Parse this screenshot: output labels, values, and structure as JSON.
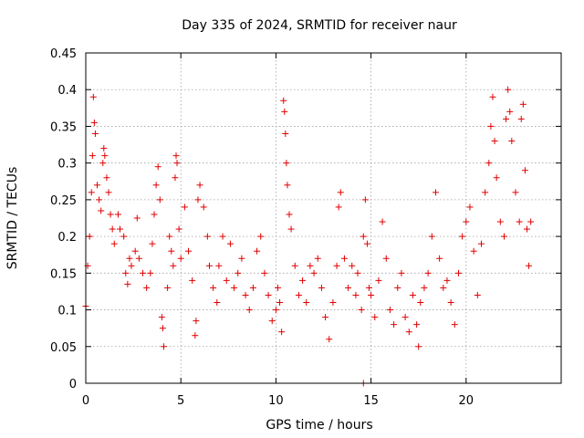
{
  "chart_data": {
    "type": "scatter",
    "title": "Day 335 of 2024, SRMTID for receiver naur",
    "xlabel": "GPS time / hours",
    "ylabel": "SRMTID / TECUs",
    "xlim": [
      0,
      25
    ],
    "ylim": [
      0,
      0.45
    ],
    "xticks": [
      0,
      5,
      10,
      15,
      20
    ],
    "yticks": [
      0,
      0.05,
      0.1,
      0.15,
      0.2,
      0.25,
      0.3,
      0.35,
      0.4,
      0.45
    ],
    "grid": true,
    "marker": "+",
    "color": "#e00000",
    "series": [
      {
        "name": "SRMTID",
        "points": [
          [
            0.0,
            0.105
          ],
          [
            0.1,
            0.16
          ],
          [
            0.2,
            0.2
          ],
          [
            0.3,
            0.26
          ],
          [
            0.35,
            0.31
          ],
          [
            0.4,
            0.39
          ],
          [
            0.45,
            0.355
          ],
          [
            0.5,
            0.34
          ],
          [
            0.6,
            0.27
          ],
          [
            0.7,
            0.25
          ],
          [
            0.8,
            0.235
          ],
          [
            0.9,
            0.3
          ],
          [
            0.95,
            0.32
          ],
          [
            1.0,
            0.31
          ],
          [
            1.1,
            0.28
          ],
          [
            1.2,
            0.26
          ],
          [
            1.3,
            0.23
          ],
          [
            1.4,
            0.21
          ],
          [
            1.5,
            0.19
          ],
          [
            1.7,
            0.23
          ],
          [
            1.8,
            0.21
          ],
          [
            2.0,
            0.2
          ],
          [
            2.1,
            0.15
          ],
          [
            2.2,
            0.135
          ],
          [
            2.3,
            0.17
          ],
          [
            2.4,
            0.16
          ],
          [
            2.6,
            0.18
          ],
          [
            2.7,
            0.225
          ],
          [
            2.8,
            0.17
          ],
          [
            3.0,
            0.15
          ],
          [
            3.2,
            0.13
          ],
          [
            3.4,
            0.15
          ],
          [
            3.5,
            0.19
          ],
          [
            3.6,
            0.23
          ],
          [
            3.7,
            0.27
          ],
          [
            3.8,
            0.295
          ],
          [
            3.9,
            0.25
          ],
          [
            4.0,
            0.09
          ],
          [
            4.05,
            0.075
          ],
          [
            4.1,
            0.05
          ],
          [
            4.3,
            0.13
          ],
          [
            4.4,
            0.2
          ],
          [
            4.5,
            0.18
          ],
          [
            4.6,
            0.16
          ],
          [
            4.7,
            0.28
          ],
          [
            4.75,
            0.31
          ],
          [
            4.8,
            0.3
          ],
          [
            4.9,
            0.21
          ],
          [
            5.0,
            0.17
          ],
          [
            5.2,
            0.24
          ],
          [
            5.4,
            0.18
          ],
          [
            5.6,
            0.14
          ],
          [
            5.75,
            0.065
          ],
          [
            5.8,
            0.085
          ],
          [
            5.9,
            0.25
          ],
          [
            6.0,
            0.27
          ],
          [
            6.2,
            0.24
          ],
          [
            6.4,
            0.2
          ],
          [
            6.5,
            0.16
          ],
          [
            6.7,
            0.13
          ],
          [
            6.9,
            0.11
          ],
          [
            7.0,
            0.16
          ],
          [
            7.2,
            0.2
          ],
          [
            7.4,
            0.14
          ],
          [
            7.6,
            0.19
          ],
          [
            7.8,
            0.13
          ],
          [
            8.0,
            0.15
          ],
          [
            8.2,
            0.17
          ],
          [
            8.4,
            0.12
          ],
          [
            8.6,
            0.1
          ],
          [
            8.8,
            0.13
          ],
          [
            9.0,
            0.18
          ],
          [
            9.2,
            0.2
          ],
          [
            9.4,
            0.15
          ],
          [
            9.6,
            0.12
          ],
          [
            9.8,
            0.085
          ],
          [
            10.0,
            0.1
          ],
          [
            10.1,
            0.13
          ],
          [
            10.2,
            0.11
          ],
          [
            10.3,
            0.07
          ],
          [
            10.4,
            0.385
          ],
          [
            10.45,
            0.37
          ],
          [
            10.5,
            0.34
          ],
          [
            10.55,
            0.3
          ],
          [
            10.6,
            0.27
          ],
          [
            10.7,
            0.23
          ],
          [
            10.8,
            0.21
          ],
          [
            11.0,
            0.16
          ],
          [
            11.2,
            0.12
          ],
          [
            11.4,
            0.14
          ],
          [
            11.6,
            0.11
          ],
          [
            11.8,
            0.16
          ],
          [
            12.0,
            0.15
          ],
          [
            12.2,
            0.17
          ],
          [
            12.4,
            0.13
          ],
          [
            12.6,
            0.09
          ],
          [
            12.8,
            0.06
          ],
          [
            13.0,
            0.11
          ],
          [
            13.2,
            0.16
          ],
          [
            13.3,
            0.24
          ],
          [
            13.4,
            0.26
          ],
          [
            13.6,
            0.17
          ],
          [
            13.8,
            0.13
          ],
          [
            14.0,
            0.16
          ],
          [
            14.2,
            0.12
          ],
          [
            14.3,
            0.15
          ],
          [
            14.5,
            0.1
          ],
          [
            14.6,
            0.2
          ],
          [
            14.7,
            0.25
          ],
          [
            14.8,
            0.19
          ],
          [
            14.9,
            0.13
          ],
          [
            15.0,
            0.12
          ],
          [
            15.2,
            0.09
          ],
          [
            15.4,
            0.14
          ],
          [
            15.6,
            0.22
          ],
          [
            15.8,
            0.17
          ],
          [
            16.0,
            0.1
          ],
          [
            16.2,
            0.08
          ],
          [
            16.4,
            0.13
          ],
          [
            16.6,
            0.15
          ],
          [
            16.8,
            0.09
          ],
          [
            17.0,
            0.07
          ],
          [
            17.2,
            0.12
          ],
          [
            17.4,
            0.08
          ],
          [
            17.5,
            0.05
          ],
          [
            17.6,
            0.11
          ],
          [
            17.8,
            0.13
          ],
          [
            18.0,
            0.15
          ],
          [
            18.2,
            0.2
          ],
          [
            18.4,
            0.26
          ],
          [
            18.6,
            0.17
          ],
          [
            18.8,
            0.13
          ],
          [
            19.0,
            0.14
          ],
          [
            19.2,
            0.11
          ],
          [
            19.4,
            0.08
          ],
          [
            19.6,
            0.15
          ],
          [
            19.8,
            0.2
          ],
          [
            20.0,
            0.22
          ],
          [
            20.2,
            0.24
          ],
          [
            20.4,
            0.18
          ],
          [
            20.6,
            0.12
          ],
          [
            20.8,
            0.19
          ],
          [
            21.0,
            0.26
          ],
          [
            21.2,
            0.3
          ],
          [
            21.3,
            0.35
          ],
          [
            21.4,
            0.39
          ],
          [
            21.5,
            0.33
          ],
          [
            21.6,
            0.28
          ],
          [
            21.8,
            0.22
          ],
          [
            22.0,
            0.2
          ],
          [
            22.1,
            0.36
          ],
          [
            22.2,
            0.4
          ],
          [
            22.3,
            0.37
          ],
          [
            22.4,
            0.33
          ],
          [
            22.6,
            0.26
          ],
          [
            22.8,
            0.22
          ],
          [
            22.9,
            0.36
          ],
          [
            23.0,
            0.38
          ],
          [
            23.1,
            0.29
          ],
          [
            23.2,
            0.21
          ],
          [
            23.3,
            0.16
          ],
          [
            23.4,
            0.22
          ],
          [
            14.6,
            0.0
          ]
        ]
      }
    ]
  }
}
